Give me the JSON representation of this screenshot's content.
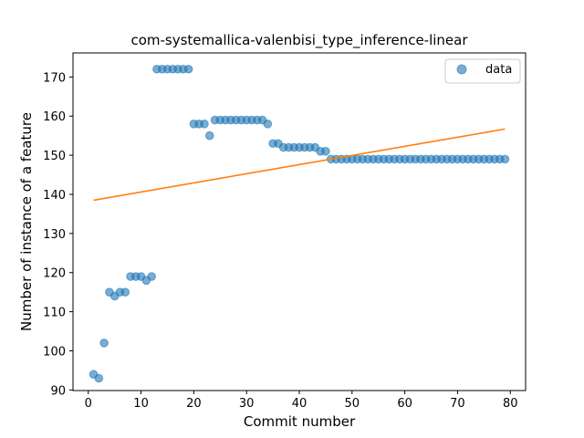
{
  "chart_data": {
    "type": "scatter",
    "title": "com-systemallica-valenbisi_type_inference-linear",
    "xlabel": "Commit number",
    "ylabel": "Number of instance of a feature",
    "xlim": [
      -2.9,
      82.9
    ],
    "ylim": [
      89.85,
      176.15
    ],
    "xticks": [
      0,
      10,
      20,
      30,
      40,
      50,
      60,
      70,
      80
    ],
    "yticks": [
      90,
      100,
      110,
      120,
      130,
      140,
      150,
      160,
      170
    ],
    "legend": {
      "position": "top-right",
      "entries": [
        "data"
      ]
    },
    "colors": {
      "data": "#1f77b4",
      "fit": "#ff7f0e"
    },
    "series": [
      {
        "name": "data",
        "kind": "scatter",
        "x": [
          1,
          2,
          3,
          4,
          5,
          6,
          7,
          8,
          9,
          10,
          11,
          12,
          13,
          14,
          15,
          16,
          17,
          18,
          19,
          20,
          21,
          22,
          23,
          24,
          25,
          26,
          27,
          28,
          29,
          30,
          31,
          32,
          33,
          34,
          35,
          36,
          37,
          38,
          39,
          40,
          41,
          42,
          43,
          44,
          45,
          46,
          47,
          48,
          49,
          50,
          51,
          52,
          53,
          54,
          55,
          56,
          57,
          58,
          59,
          60,
          61,
          62,
          63,
          64,
          65,
          66,
          67,
          68,
          69,
          70,
          71,
          72,
          73,
          74,
          75,
          76,
          77,
          78,
          79
        ],
        "y": [
          94,
          93,
          102,
          115,
          114,
          115,
          115,
          119,
          119,
          119,
          118,
          119,
          172,
          172,
          172,
          172,
          172,
          172,
          172,
          158,
          158,
          158,
          155,
          159,
          159,
          159,
          159,
          159,
          159,
          159,
          159,
          159,
          159,
          158,
          153,
          153,
          152,
          152,
          152,
          152,
          152,
          152,
          152,
          151,
          151,
          149,
          149,
          149,
          149,
          149,
          149,
          149,
          149,
          149,
          149,
          149,
          149,
          149,
          149,
          149,
          149,
          149,
          149,
          149,
          149,
          149,
          149,
          149,
          149,
          149,
          149,
          149,
          149,
          149,
          149,
          149,
          149,
          149,
          149
        ]
      },
      {
        "kind": "line",
        "x": [
          1,
          79
        ],
        "y": [
          138.5,
          156.7
        ]
      }
    ]
  }
}
